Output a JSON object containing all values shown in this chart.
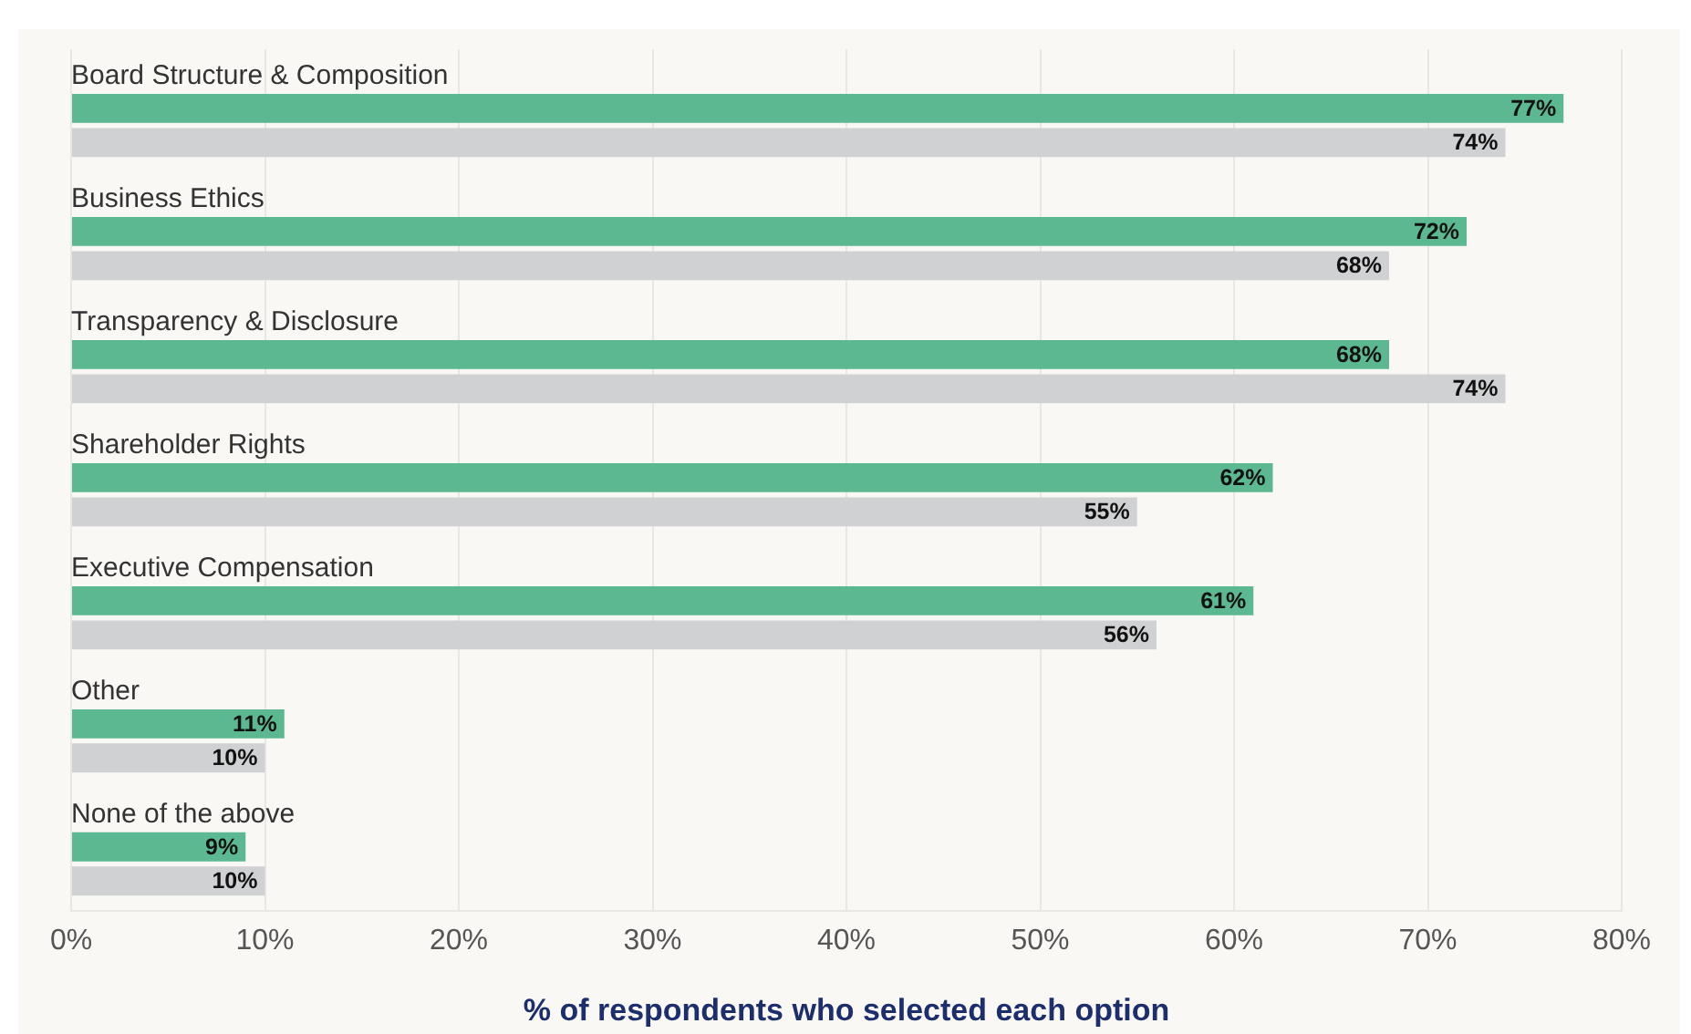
{
  "chart_data": {
    "type": "bar",
    "orientation": "horizontal",
    "categories": [
      "Board Structure & Composition",
      "Business Ethics",
      "Transparency & Disclosure",
      "Shareholder Rights",
      "Executive Compensation",
      "Other",
      "None of the above"
    ],
    "series": [
      {
        "color": "#5cb891",
        "values": [
          77,
          72,
          68,
          62,
          61,
          11,
          9
        ],
        "value_labels": [
          "77%",
          "72%",
          "68%",
          "62%",
          "61%",
          "11%",
          "9%"
        ]
      },
      {
        "color": "#d0d1d3",
        "values": [
          74,
          68,
          74,
          55,
          56,
          10,
          10
        ],
        "value_labels": [
          "74%",
          "68%",
          "74%",
          "55%",
          "56%",
          "10%",
          "10%"
        ]
      }
    ],
    "xlabel": "% of respondents who selected each option",
    "xlim": [
      0,
      80
    ],
    "xticks": [
      {
        "value": 0,
        "label": "0%"
      },
      {
        "value": 10,
        "label": "10%"
      },
      {
        "value": 20,
        "label": "20%"
      },
      {
        "value": 30,
        "label": "30%"
      },
      {
        "value": 40,
        "label": "40%"
      },
      {
        "value": 50,
        "label": "50%"
      },
      {
        "value": 60,
        "label": "60%"
      },
      {
        "value": 70,
        "label": "70%"
      },
      {
        "value": 80,
        "label": "80%"
      }
    ],
    "grid": "x"
  }
}
